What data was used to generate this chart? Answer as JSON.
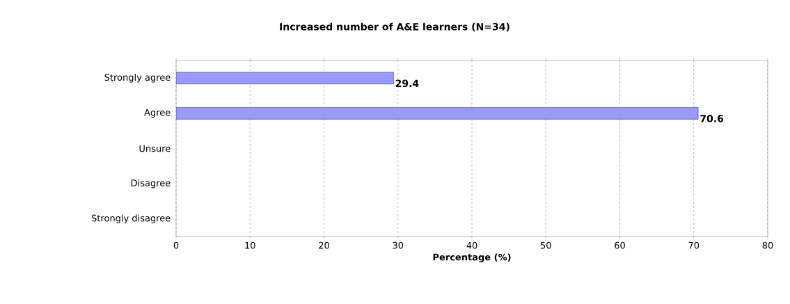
{
  "chart_data": {
    "type": "bar",
    "orientation": "horizontal",
    "title": "Increased number of A&E learners (N=34)",
    "xlabel": "Percentage (%)",
    "categories": [
      "Strongly agree",
      "Agree",
      "Unsure",
      "Disagree",
      "Strongly disagree"
    ],
    "values": [
      29.4,
      70.6,
      null,
      null,
      null
    ],
    "color": "#9999ff",
    "data_labels": true,
    "xlim": [
      0,
      80
    ],
    "xticks": [
      0,
      10,
      20,
      30,
      40,
      50,
      60,
      70,
      80
    ],
    "grid": "x"
  }
}
